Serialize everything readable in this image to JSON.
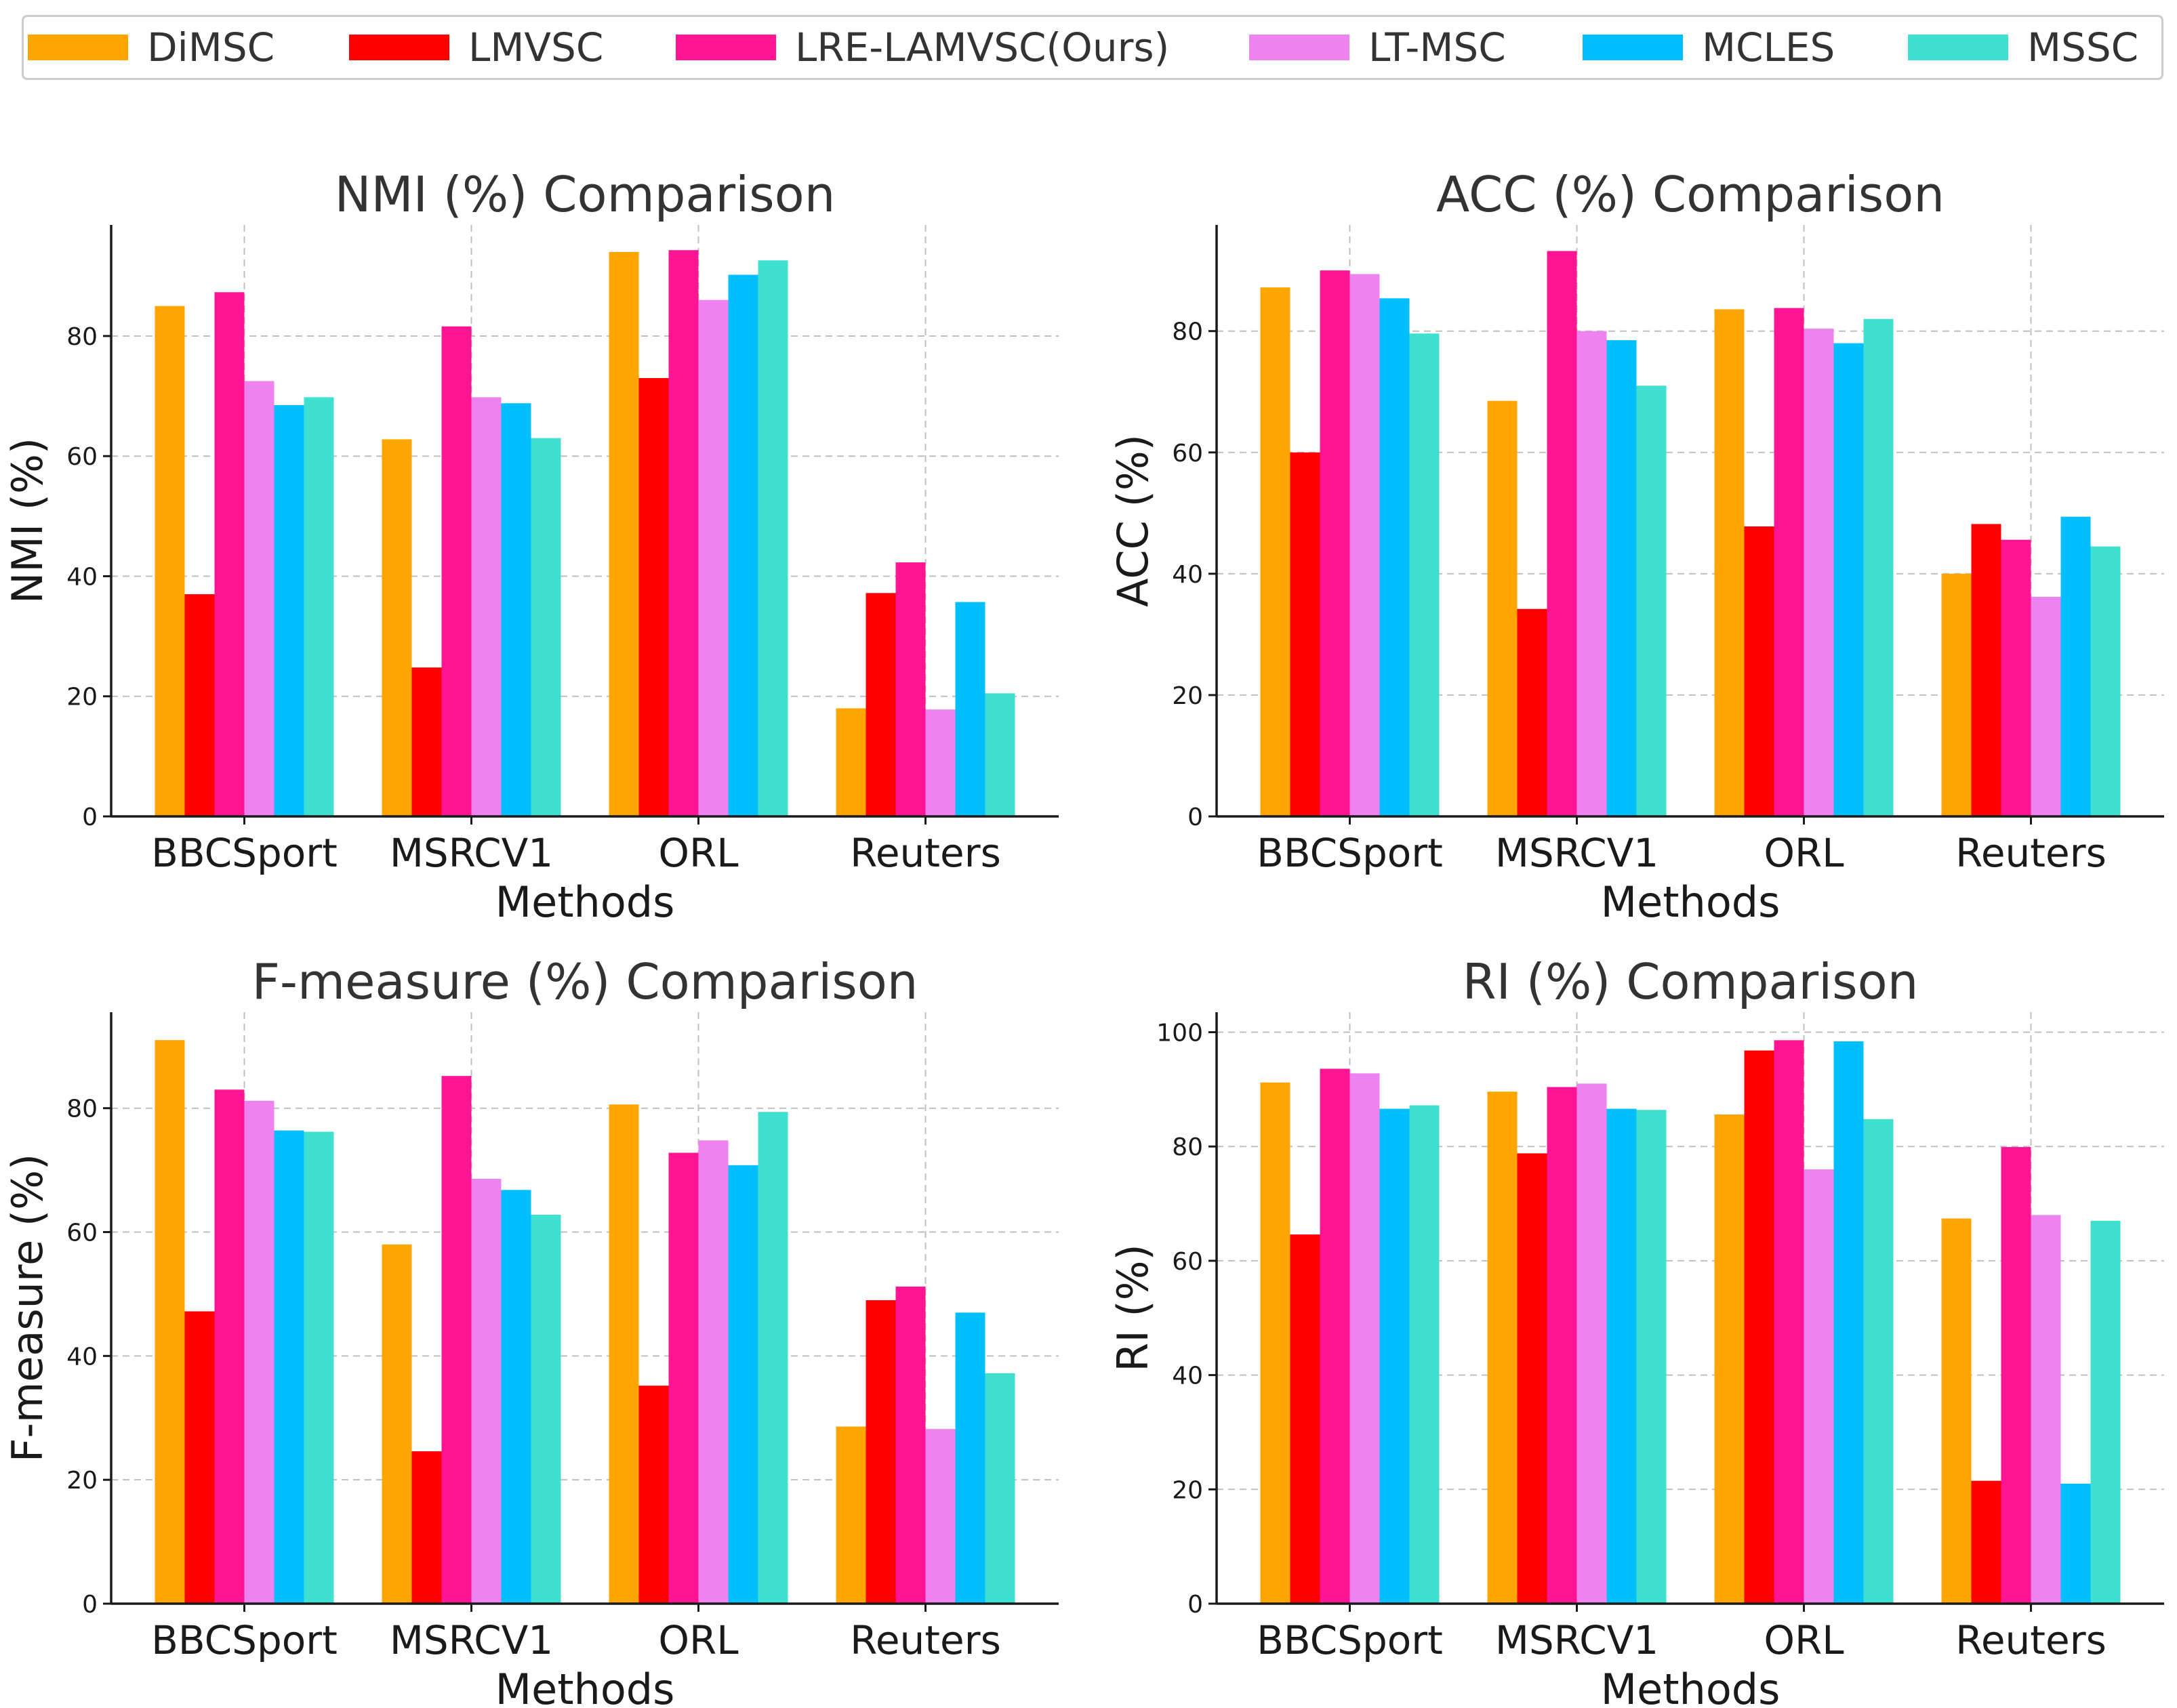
{
  "legend": [
    {
      "label": "DiMSC",
      "color": "#FFA500"
    },
    {
      "label": "LMVSC",
      "color": "#FF0000"
    },
    {
      "label": "LRE-LAMVSC(Ours)",
      "color": "#FF1493"
    },
    {
      "label": "LT-MSC",
      "color": "#EE82EE"
    },
    {
      "label": "MCLES",
      "color": "#00BFFF"
    },
    {
      "label": "MSSC",
      "color": "#40E0D0"
    }
  ],
  "chart_data": [
    {
      "type": "bar",
      "title": "NMI (%) Comparison",
      "xlabel": "Methods",
      "ylabel": "NMI (%)",
      "categories": [
        "BBCSport",
        "MSRCV1",
        "ORL",
        "Reuters"
      ],
      "ylim": [
        0,
        98.5
      ],
      "yticks": [
        0,
        20,
        40,
        60,
        80
      ],
      "grid": true,
      "series": [
        {
          "name": "DiMSC",
          "values": [
            85.0,
            62.8,
            94.0,
            18.0
          ]
        },
        {
          "name": "LMVSC",
          "values": [
            37.0,
            24.8,
            73.0,
            37.2
          ]
        },
        {
          "name": "LRE-LAMVSC(Ours)",
          "values": [
            87.3,
            81.6,
            94.3,
            42.3
          ]
        },
        {
          "name": "LT-MSC",
          "values": [
            72.5,
            69.8,
            86.0,
            17.8
          ]
        },
        {
          "name": "MCLES",
          "values": [
            68.5,
            68.8,
            90.2,
            35.7
          ]
        },
        {
          "name": "MSSC",
          "values": [
            69.8,
            63.0,
            92.6,
            20.5
          ]
        }
      ]
    },
    {
      "type": "bar",
      "title": "ACC (%) Comparison",
      "xlabel": "Methods",
      "ylabel": "ACC (%)",
      "categories": [
        "BBCSport",
        "MSRCV1",
        "ORL",
        "Reuters"
      ],
      "ylim": [
        0,
        97.5
      ],
      "yticks": [
        0,
        20,
        40,
        60,
        80
      ],
      "grid": true,
      "series": [
        {
          "name": "DiMSC",
          "values": [
            87.2,
            68.5,
            83.6,
            40.0
          ]
        },
        {
          "name": "LMVSC",
          "values": [
            60.0,
            34.2,
            47.8,
            48.2
          ]
        },
        {
          "name": "LRE-LAMVSC(Ours)",
          "values": [
            90.0,
            93.2,
            83.8,
            45.6
          ]
        },
        {
          "name": "LT-MSC",
          "values": [
            89.4,
            80.0,
            80.4,
            36.2
          ]
        },
        {
          "name": "MCLES",
          "values": [
            85.4,
            78.5,
            78.0,
            49.4
          ]
        },
        {
          "name": "MSSC",
          "values": [
            79.6,
            71.0,
            82.0,
            44.5
          ]
        }
      ]
    },
    {
      "type": "bar",
      "title": "F-measure (%) Comparison",
      "xlabel": "Methods",
      "ylabel": "F-measure (%)",
      "categories": [
        "BBCSport",
        "MSRCV1",
        "ORL",
        "Reuters"
      ],
      "ylim": [
        0,
        95.5
      ],
      "yticks": [
        0,
        20,
        40,
        60,
        80
      ],
      "grid": true,
      "series": [
        {
          "name": "DiMSC",
          "values": [
            91.0,
            58.0,
            80.6,
            28.6
          ]
        },
        {
          "name": "LMVSC",
          "values": [
            47.2,
            24.6,
            35.2,
            49.0
          ]
        },
        {
          "name": "LRE-LAMVSC(Ours)",
          "values": [
            83.0,
            85.2,
            72.8,
            51.2
          ]
        },
        {
          "name": "LT-MSC",
          "values": [
            81.2,
            68.6,
            74.8,
            28.2
          ]
        },
        {
          "name": "MCLES",
          "values": [
            76.4,
            66.8,
            70.8,
            47.0
          ]
        },
        {
          "name": "MSSC",
          "values": [
            76.2,
            62.8,
            79.4,
            37.2
          ]
        }
      ]
    },
    {
      "type": "bar",
      "title": "RI (%) Comparison",
      "xlabel": "Methods",
      "ylabel": "RI (%)",
      "categories": [
        "BBCSport",
        "MSRCV1",
        "ORL",
        "Reuters"
      ],
      "ylim": [
        0,
        103.5
      ],
      "yticks": [
        0,
        20,
        40,
        60,
        80,
        100
      ],
      "grid": true,
      "series": [
        {
          "name": "DiMSC",
          "values": [
            91.2,
            89.6,
            85.6,
            67.4
          ]
        },
        {
          "name": "LMVSC",
          "values": [
            64.6,
            78.8,
            96.8,
            21.5
          ]
        },
        {
          "name": "LRE-LAMVSC(Ours)",
          "values": [
            93.6,
            90.4,
            98.6,
            79.9
          ]
        },
        {
          "name": "LT-MSC",
          "values": [
            92.8,
            91.0,
            76.0,
            68.0
          ]
        },
        {
          "name": "MCLES",
          "values": [
            86.6,
            86.6,
            98.4,
            21.0
          ]
        },
        {
          "name": "MSSC",
          "values": [
            87.2,
            86.4,
            84.8,
            67.0
          ]
        }
      ]
    }
  ]
}
